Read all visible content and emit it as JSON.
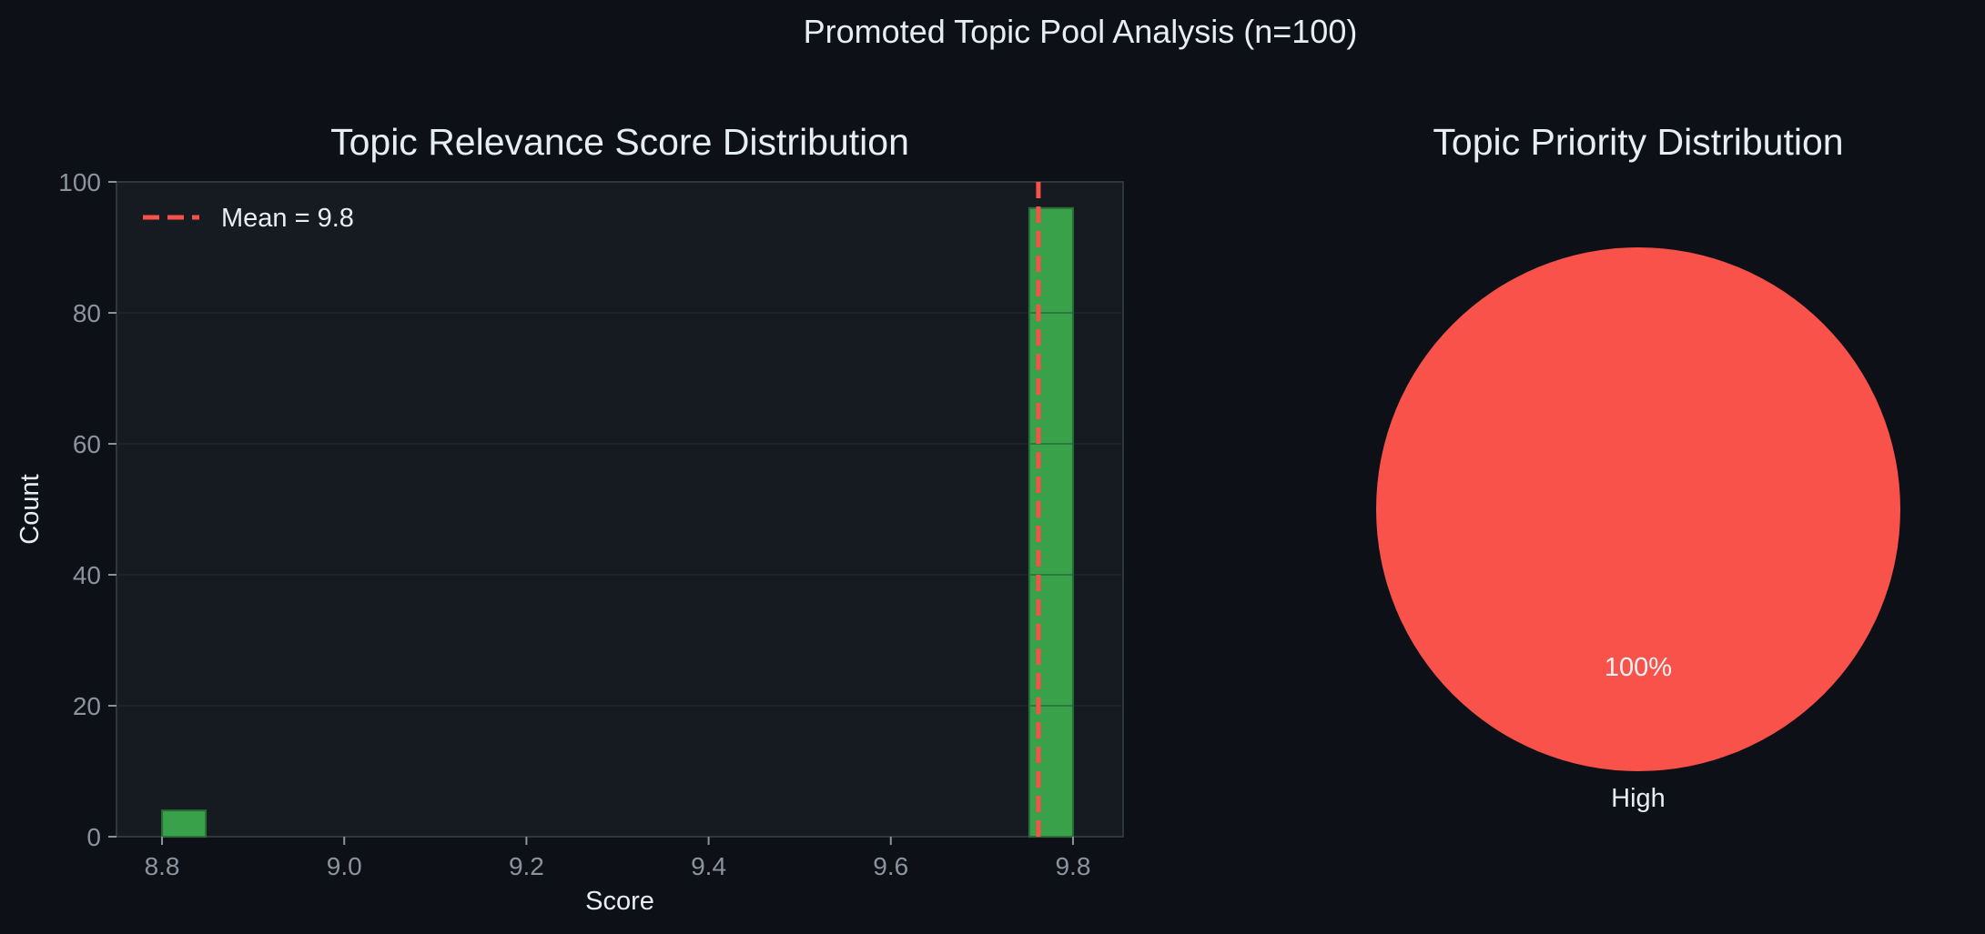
{
  "figure": {
    "title": "Promoted Topic Pool Analysis (n=100)",
    "background_color": "#0d1017",
    "axes_color": "#161b22",
    "text_color": "#e6edf3",
    "tick_color": "#8b949e"
  },
  "chart_data": [
    {
      "type": "bar",
      "subtype": "histogram",
      "title": "Topic Relevance Score Distribution",
      "xlabel": "Score",
      "ylabel": "Count",
      "xlim": [
        8.75,
        9.855
      ],
      "ylim": [
        0,
        100
      ],
      "xticks": [
        8.8,
        9.0,
        9.2,
        9.4,
        9.6,
        9.8
      ],
      "xtick_labels": [
        "8.8",
        "9.0",
        "9.2",
        "9.4",
        "9.6",
        "9.8"
      ],
      "yticks": [
        0,
        20,
        40,
        60,
        80,
        100
      ],
      "ytick_labels": [
        "0",
        "20",
        "40",
        "60",
        "80",
        "100"
      ],
      "grid": true,
      "bins": [
        {
          "start": 8.8,
          "end": 8.848,
          "count": 4
        },
        {
          "start": 9.752,
          "end": 9.8,
          "count": 96
        }
      ],
      "bar_color": "#3fb950",
      "reference_line": {
        "label": "Mean = 9.8",
        "x": 9.762,
        "color": "#f85149",
        "style": "dashed"
      },
      "legend": {
        "position": "top-left",
        "entries": [
          "Mean = 9.8"
        ]
      }
    },
    {
      "type": "pie",
      "title": "Topic Priority Distribution",
      "slices": [
        {
          "label": "High",
          "value": 100,
          "pct_label": "100%",
          "color": "#f8524a"
        }
      ]
    }
  ]
}
